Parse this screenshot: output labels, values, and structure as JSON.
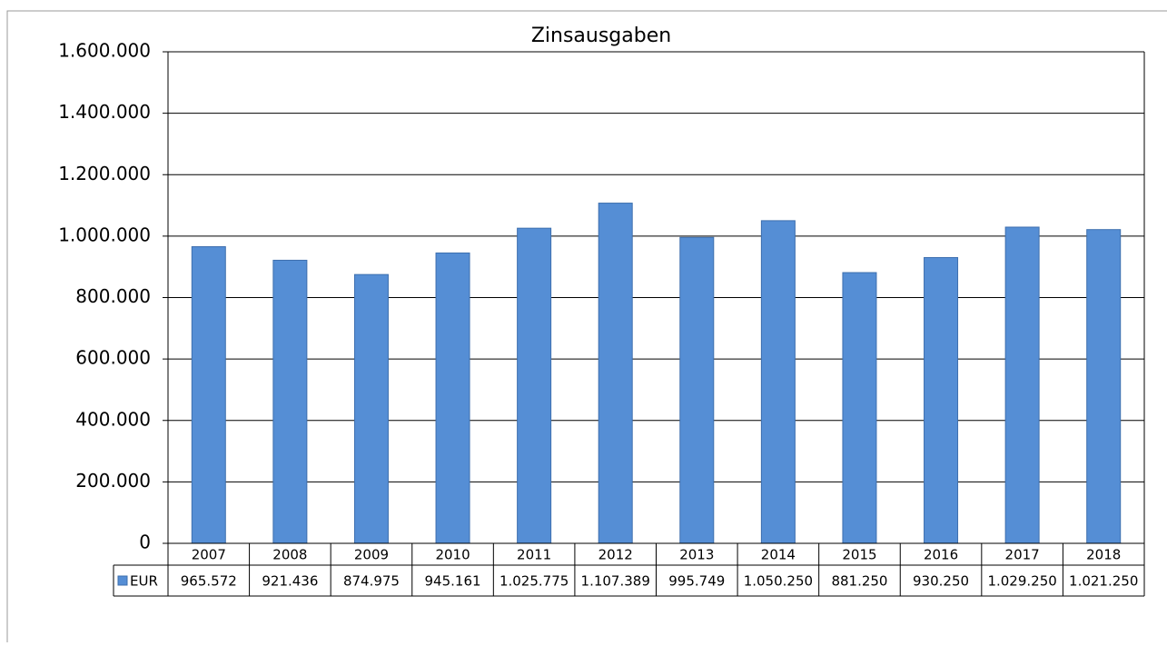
{
  "chart_data": {
    "type": "bar",
    "title": "Zinsausgaben",
    "categories": [
      "2007",
      "2008",
      "2009",
      "2010",
      "2011",
      "2012",
      "2013",
      "2014",
      "2015",
      "2016",
      "2017",
      "2018"
    ],
    "series": [
      {
        "name": "EUR",
        "color": "#558ed5",
        "values": [
          965572,
          921436,
          874975,
          945161,
          1025775,
          1107389,
          995749,
          1050250,
          881250,
          930250,
          1029250,
          1021250
        ],
        "value_labels": [
          "965.572",
          "921.436",
          "874.975",
          "945.161",
          "1.025.775",
          "1.107.389",
          "995.749",
          "1.050.250",
          "881.250",
          "930.250",
          "1.029.250",
          "1.021.250"
        ]
      }
    ],
    "ylim": [
      0,
      1600000
    ],
    "yticks": [
      0,
      {
        "value": 200000,
        "label": "200.000"
      },
      {
        "value": 400000,
        "label": "400.000"
      },
      {
        "value": 600000,
        "label": "600.000"
      },
      {
        "value": 800000,
        "label": "800.000"
      },
      {
        "value": 1000000,
        "label": "1.000.000"
      },
      {
        "value": 1200000,
        "label": "1.200.000"
      },
      {
        "value": 1400000,
        "label": "1.400.000"
      },
      {
        "value": 1600000,
        "label": "1.600.000"
      }
    ],
    "grid": true,
    "data_table": true
  }
}
